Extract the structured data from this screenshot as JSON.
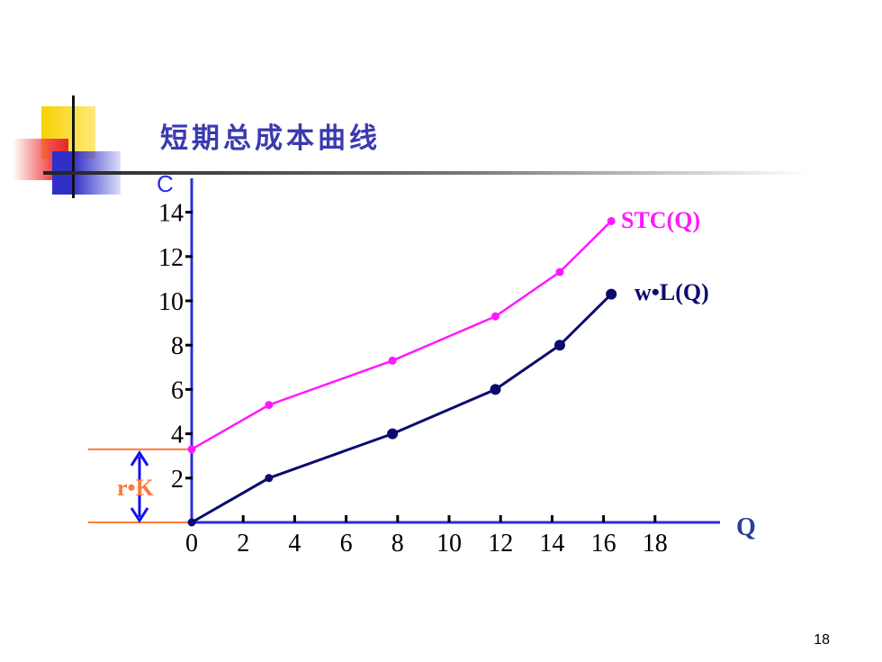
{
  "slide": {
    "title": "短期总成本曲线",
    "page_number": "18"
  },
  "colors": {
    "stc": "#ff18ff",
    "wl": "#0b0b6e",
    "axis": "#2d2de0",
    "rk": "#ff7a3a",
    "arrow": "#1010ee",
    "title": "#3a3ab0"
  },
  "chart_data": {
    "type": "line",
    "ylabel": "C",
    "xlabel": "Q",
    "xlim": [
      0,
      20
    ],
    "ylim": [
      0,
      15
    ],
    "x_ticks": [
      0,
      2,
      4,
      6,
      8,
      10,
      12,
      14,
      16,
      18
    ],
    "y_ticks": [
      2,
      4,
      6,
      8,
      10,
      12,
      14
    ],
    "series": [
      {
        "name": "STC(Q)",
        "points": [
          [
            0,
            3.3
          ],
          [
            3,
            5.3
          ],
          [
            7.8,
            7.3
          ],
          [
            11.8,
            9.3
          ],
          [
            14.3,
            11.3
          ],
          [
            16.3,
            13.6
          ]
        ]
      },
      {
        "name": "w•L(Q)",
        "points": [
          [
            0,
            0
          ],
          [
            3,
            2
          ],
          [
            7.8,
            4
          ],
          [
            11.8,
            6
          ],
          [
            14.3,
            8
          ],
          [
            16.3,
            10.3
          ]
        ]
      }
    ],
    "annotation": {
      "label": "r•K",
      "y_from": 0,
      "y_to": 3.3
    }
  }
}
